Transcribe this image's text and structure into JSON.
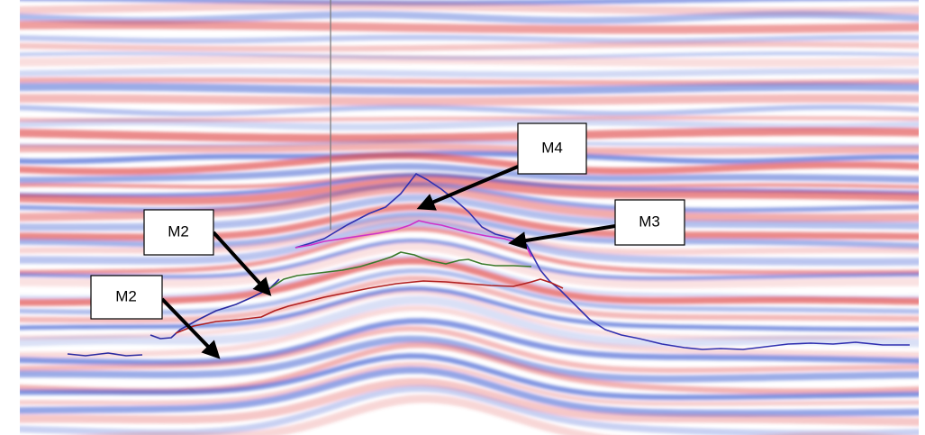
{
  "labels": {
    "m4": "M4",
    "m3": "M3",
    "m2_upper": "M2",
    "m2_lower": "M2"
  }
}
